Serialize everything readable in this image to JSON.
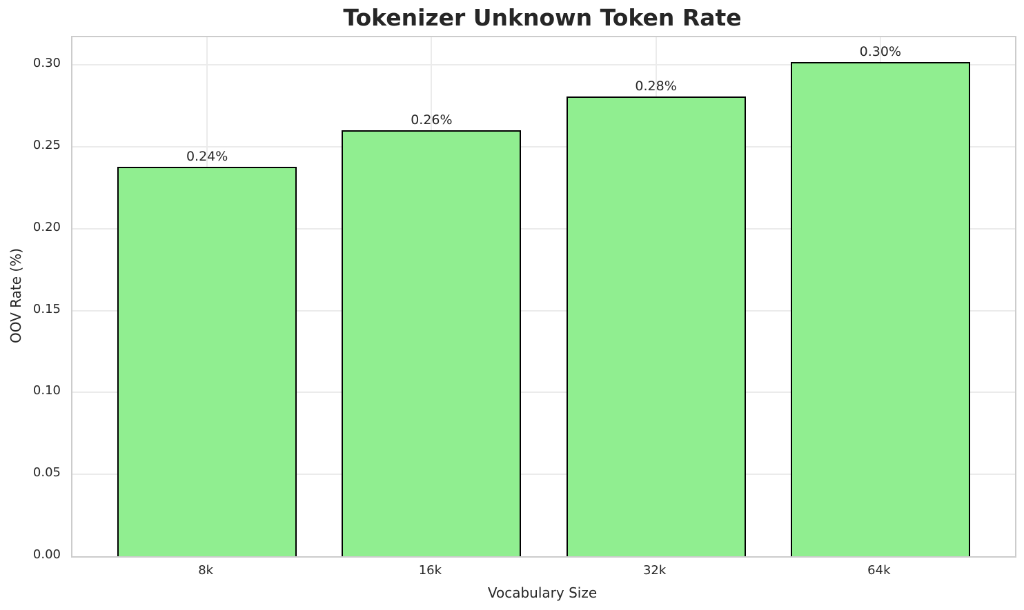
{
  "chart_data": {
    "type": "bar",
    "title": "Tokenizer Unknown Token Rate",
    "xlabel": "Vocabulary Size",
    "ylabel": "OOV Rate (%)",
    "categories": [
      "8k",
      "16k",
      "32k",
      "64k"
    ],
    "values": [
      0.238,
      0.26,
      0.281,
      0.302
    ],
    "bar_labels": [
      "0.24%",
      "0.26%",
      "0.28%",
      "0.30%"
    ],
    "yticks": [
      0.0,
      0.05,
      0.1,
      0.15,
      0.2,
      0.25,
      0.3
    ],
    "ytick_labels": [
      "0.00",
      "0.05",
      "0.10",
      "0.15",
      "0.20",
      "0.25",
      "0.30"
    ],
    "ylim": [
      0,
      0.317
    ],
    "grid": true,
    "legend": null,
    "bar_color": "#90EE90",
    "bar_edge_color": "#000000",
    "grid_color": "#ebebeb",
    "spine_color": "#cccccc",
    "text_color": "#262626"
  }
}
